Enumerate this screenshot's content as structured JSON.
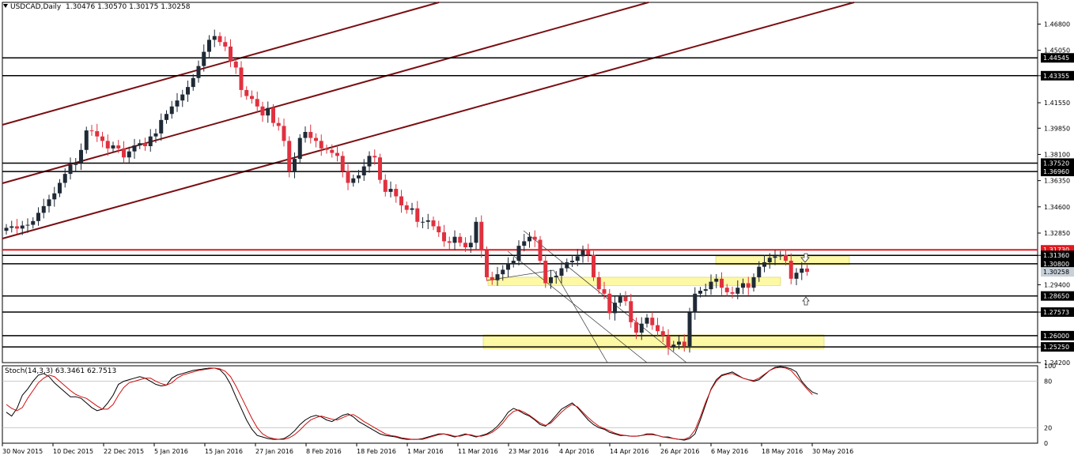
{
  "header": {
    "symbol": "USDCAD,Daily",
    "ohlc": "1.30476 1.30570 1.30175 1.30258"
  },
  "stoch_label": "Stoch(14,3,3) 63.3461 62.7513",
  "colors": {
    "background": "#ffffff",
    "bull_candle": "#1f2a36",
    "bear_candle": "#e0313f",
    "channel": "#7a0e12",
    "support_line": "#000000",
    "resistance_red": "#e0191f",
    "zone_fill": "#fdf8a4",
    "stoch_main": "#000000",
    "stoch_signal": "#d01010",
    "price_tag_current": "#c7d0d9"
  },
  "chart_data": [
    {
      "type": "candlestick",
      "title": "USDCAD,Daily",
      "ylim": [
        1.242,
        1.4825
      ],
      "y_ticks": [
        "1.46800",
        "1.45050",
        "1.43355",
        "1.41550",
        "1.39850",
        "1.38100",
        "1.36350",
        "1.34600",
        "1.32850",
        "1.31360",
        "1.29400",
        "1.27573",
        "1.25250",
        "1.24200"
      ],
      "x_tick_labels": [
        "30 Nov 2015",
        "10 Dec 2015",
        "22 Dec 2015",
        "5 Jan 2016",
        "15 Jan 2016",
        "27 Jan 2016",
        "8 Feb 2016",
        "18 Feb 2016",
        "1 Mar 2016",
        "11 Mar 2016",
        "23 Mar 2016",
        "4 Apr 2016",
        "14 Apr 2016",
        "26 Apr 2016",
        "6 May 2016",
        "18 May 2016",
        "30 May 2016"
      ],
      "closes": [
        1.332,
        1.333,
        1.3315,
        1.3335,
        1.334,
        1.3365,
        1.342,
        1.3465,
        1.351,
        1.355,
        1.362,
        1.368,
        1.374,
        1.3755,
        1.384,
        1.397,
        1.3965,
        1.393,
        1.39,
        1.385,
        1.387,
        1.385,
        1.379,
        1.383,
        1.387,
        1.3885,
        1.3865,
        1.393,
        1.395,
        1.404,
        1.408,
        1.413,
        1.417,
        1.421,
        1.426,
        1.432,
        1.44,
        1.4495,
        1.4575,
        1.46,
        1.456,
        1.453,
        1.443,
        1.439,
        1.424,
        1.42,
        1.418,
        1.413,
        1.407,
        1.412,
        1.402,
        1.4,
        1.39,
        1.37,
        1.378,
        1.392,
        1.396,
        1.392,
        1.39,
        1.385,
        1.384,
        1.382,
        1.38,
        1.37,
        1.362,
        1.365,
        1.367,
        1.373,
        1.38,
        1.379,
        1.364,
        1.356,
        1.358,
        1.353,
        1.347,
        1.344,
        1.345,
        1.336,
        1.336,
        1.337,
        1.333,
        1.329,
        1.323,
        1.322,
        1.326,
        1.322,
        1.319,
        1.322,
        1.336,
        1.317,
        1.299,
        1.297,
        1.301,
        1.304,
        1.308,
        1.31,
        1.32,
        1.323,
        1.326,
        1.324,
        1.31,
        1.295,
        1.299,
        1.3,
        1.305,
        1.309,
        1.31,
        1.313,
        1.317,
        1.314,
        1.299,
        1.291,
        1.288,
        1.275,
        1.282,
        1.286,
        1.283,
        1.269,
        1.262,
        1.268,
        1.272,
        1.267,
        1.263,
        1.26,
        1.252,
        1.254,
        1.256,
        1.253,
        1.2755,
        1.288,
        1.29,
        1.291,
        1.296,
        1.298,
        1.292,
        1.289,
        1.288,
        1.292,
        1.295,
        1.292,
        1.299,
        1.306,
        1.309,
        1.312,
        1.313,
        1.314,
        1.31,
        1.298,
        1.302,
        1.3048,
        1.3026
      ],
      "series": [
        {
          "name": "resistance",
          "value": 1.3173,
          "label": "1.31730",
          "color": "#e0191f"
        },
        {
          "name": "level",
          "value": 1.3136,
          "label": "1.31360"
        },
        {
          "name": "level",
          "value": 1.308,
          "label": "1.30800"
        },
        {
          "name": "current",
          "value": 1.30258,
          "label": "1.30258"
        },
        {
          "name": "level",
          "value": 1.2865,
          "label": "1.28650"
        },
        {
          "name": "level",
          "value": 1.27573,
          "label": "1.27573"
        },
        {
          "name": "level",
          "value": 1.26,
          "label": "1.26000"
        },
        {
          "name": "level",
          "value": 1.2525,
          "label": "1.25250"
        },
        {
          "name": "level",
          "value": 1.3752,
          "label": "1.37520"
        },
        {
          "name": "level",
          "value": 1.3696,
          "label": "1.36960"
        },
        {
          "name": "level",
          "value": 1.44545,
          "label": "1.44545"
        },
        {
          "name": "level",
          "value": 1.43355,
          "label": "1.43355"
        }
      ]
    },
    {
      "type": "line",
      "title": "Stoch(14,3,3) 63.3461 62.7513",
      "ylim": [
        0,
        100
      ],
      "y_ticks": [
        "100",
        "80",
        "20",
        "0"
      ],
      "series": [
        {
          "name": "main",
          "values": [
            40,
            35,
            45,
            62,
            70,
            80,
            88,
            90,
            86,
            78,
            72,
            66,
            60,
            60,
            58,
            52,
            46,
            42,
            44,
            52,
            62,
            76,
            80,
            82,
            84,
            86,
            84,
            80,
            76,
            74,
            75,
            84,
            88,
            90,
            92,
            94,
            95,
            96,
            97,
            97,
            95,
            88,
            76,
            60,
            45,
            30,
            18,
            10,
            8,
            6,
            5,
            5,
            6,
            10,
            16,
            24,
            30,
            34,
            36,
            34,
            30,
            28,
            32,
            36,
            38,
            34,
            28,
            24,
            20,
            16,
            12,
            10,
            9,
            8,
            6,
            5,
            5,
            5,
            6,
            8,
            10,
            12,
            12,
            10,
            8,
            10,
            12,
            10,
            8,
            10,
            12,
            16,
            22,
            30,
            40,
            45,
            42,
            38,
            35,
            30,
            24,
            22,
            28,
            36,
            44,
            48,
            52,
            46,
            38,
            30,
            24,
            20,
            18,
            14,
            12,
            10,
            10,
            9,
            9,
            10,
            12,
            12,
            10,
            8,
            8,
            6,
            5,
            4,
            6,
            12,
            30,
            50,
            70,
            82,
            88,
            90,
            92,
            88,
            84,
            82,
            80,
            82,
            88,
            94,
            98,
            99,
            98,
            96,
            92,
            80,
            72,
            66,
            63.3
          ]
        },
        {
          "name": "signal",
          "values": [
            50,
            45,
            42,
            46,
            58,
            68,
            78,
            84,
            88,
            86,
            80,
            74,
            68,
            63,
            60,
            58,
            53,
            48,
            44,
            44,
            50,
            62,
            72,
            78,
            80,
            82,
            84,
            84,
            80,
            77,
            75,
            78,
            84,
            88,
            90,
            92,
            94,
            95,
            96,
            97,
            96,
            93,
            86,
            74,
            60,
            46,
            32,
            20,
            12,
            8,
            6,
            5,
            5,
            7,
            11,
            17,
            24,
            30,
            33,
            35,
            33,
            31,
            30,
            33,
            36,
            37,
            33,
            28,
            24,
            20,
            16,
            12,
            10,
            9,
            7,
            6,
            5,
            5,
            5,
            7,
            9,
            11,
            12,
            11,
            9,
            9,
            11,
            11,
            9,
            9,
            11,
            14,
            19,
            26,
            35,
            41,
            43,
            40,
            36,
            31,
            26,
            23,
            26,
            33,
            40,
            46,
            50,
            47,
            40,
            33,
            27,
            22,
            19,
            16,
            13,
            11,
            10,
            9,
            9,
            10,
            11,
            11,
            10,
            8,
            7,
            6,
            5,
            5,
            8,
            17,
            34,
            53,
            69,
            80,
            87,
            89,
            90,
            87,
            84,
            82,
            81,
            84,
            89,
            94,
            97,
            98,
            97,
            94,
            86,
            78,
            70,
            62.75
          ]
        }
      ]
    }
  ]
}
